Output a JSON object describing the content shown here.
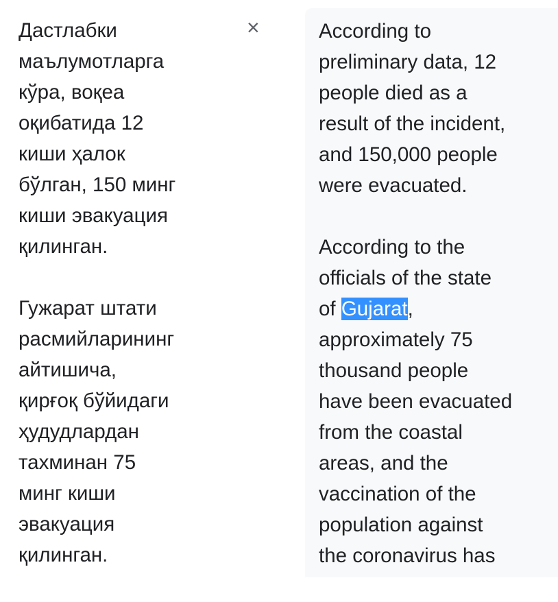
{
  "close_button": "×",
  "source": {
    "paragraphs": [
      [
        "Дастлабки",
        "маълумотларга",
        "кўра, воқеа",
        "оқибатида 12",
        "киши ҳалок",
        "бўлган, 150 минг",
        "киши эвакуация",
        "қилинган."
      ],
      [
        "Гужарат штати",
        "расмийларининг",
        "айтишича,",
        "қирғоқ бўйидаги",
        "ҳудудлардан",
        "тахминан 75",
        "минг киши",
        "эвакуация",
        "қилинган."
      ]
    ]
  },
  "translation": {
    "paragraphs": [
      [
        "According to",
        "preliminary data, 12",
        "people died as a",
        "result of the incident,",
        "and 150,000 people",
        "were evacuated."
      ],
      [
        "According to the",
        "officials of the state",
        {
          "before": "of ",
          "highlight": "Gujarat",
          "after": ","
        },
        "approximately 75",
        "thousand people",
        "have been evacuated",
        "from the coastal",
        "areas, and the",
        "vaccination of the",
        "population against",
        "the coronavirus has"
      ]
    ]
  }
}
